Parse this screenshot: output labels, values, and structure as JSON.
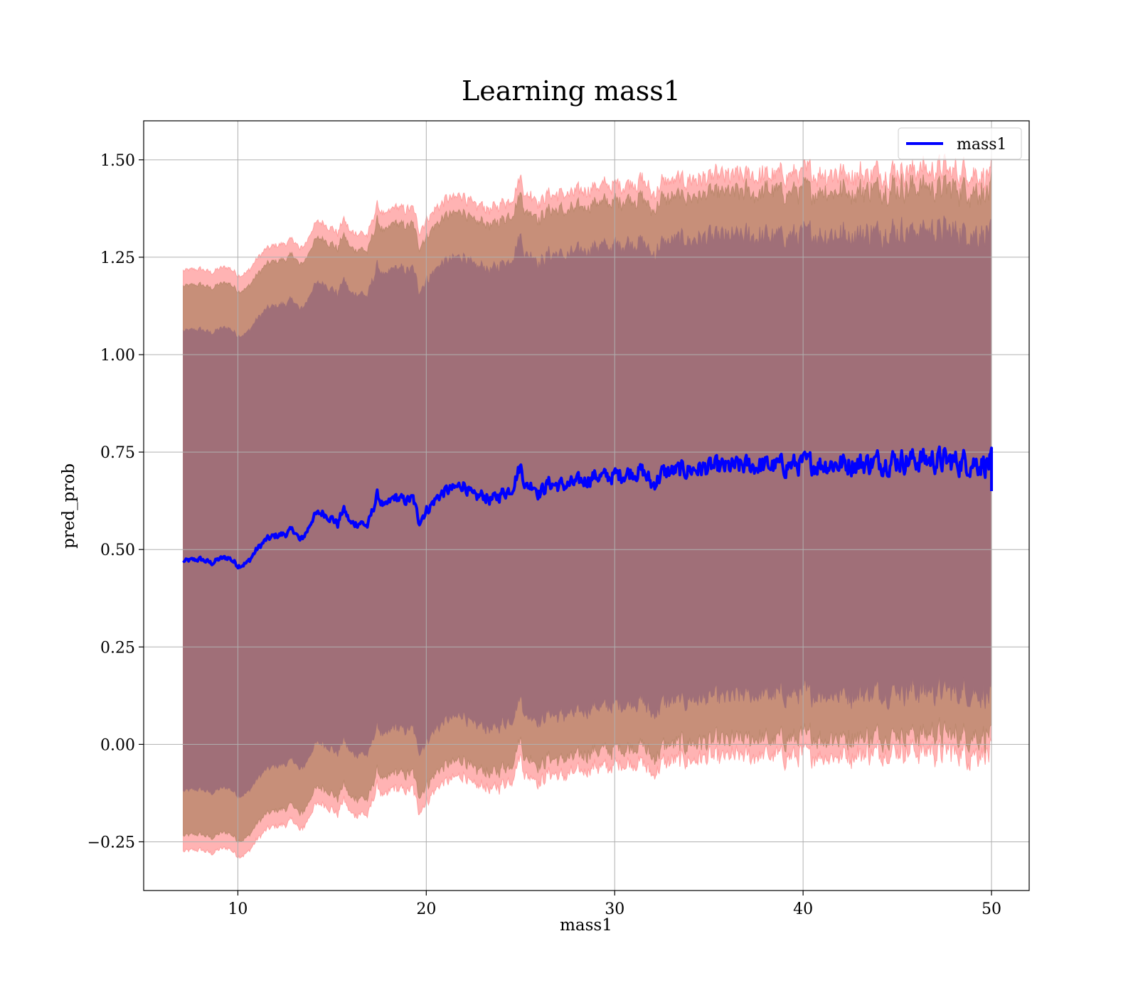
{
  "chart_data": {
    "type": "line",
    "title": "Learning mass1",
    "xlabel": "mass1",
    "ylabel": "pred_prob",
    "xlim": [
      5,
      52
    ],
    "ylim": [
      -0.375,
      1.6
    ],
    "xticks": [
      10,
      20,
      30,
      40,
      50
    ],
    "xtick_labels": [
      "10",
      "20",
      "30",
      "40",
      "50"
    ],
    "yticks": [
      -0.25,
      0.0,
      0.25,
      0.5,
      0.75,
      1.0,
      1.25,
      1.5
    ],
    "ytick_labels": [
      "−0.25",
      "0.00",
      "0.25",
      "0.50",
      "0.75",
      "1.00",
      "1.25",
      "1.50"
    ],
    "grid": true,
    "legend": {
      "position": "top-right",
      "entries": [
        "mass1"
      ]
    },
    "x_range": [
      7.1,
      50.0
    ],
    "series": [
      {
        "name": "mass1",
        "color": "#0000ff",
        "anchors": [
          [
            7.1,
            0.47
          ],
          [
            8,
            0.475
          ],
          [
            8.6,
            0.465
          ],
          [
            9,
            0.475
          ],
          [
            9.5,
            0.48
          ],
          [
            10,
            0.46
          ],
          [
            10.5,
            0.465
          ],
          [
            11,
            0.5
          ],
          [
            11.5,
            0.525
          ],
          [
            12,
            0.535
          ],
          [
            12.5,
            0.54
          ],
          [
            13,
            0.55
          ],
          [
            13.3,
            0.52
          ],
          [
            13.7,
            0.55
          ],
          [
            14,
            0.585
          ],
          [
            14.5,
            0.595
          ],
          [
            15,
            0.58
          ],
          [
            15.3,
            0.565
          ],
          [
            15.6,
            0.605
          ],
          [
            16,
            0.565
          ],
          [
            16.5,
            0.57
          ],
          [
            16.9,
            0.56
          ],
          [
            17.4,
            0.64
          ],
          [
            17.8,
            0.605
          ],
          [
            18.3,
            0.635
          ],
          [
            18.8,
            0.625
          ],
          [
            19.3,
            0.63
          ],
          [
            19.6,
            0.575
          ],
          [
            20,
            0.6
          ],
          [
            20.6,
            0.635
          ],
          [
            21,
            0.65
          ],
          [
            21.5,
            0.655
          ],
          [
            22,
            0.67
          ],
          [
            22.5,
            0.63
          ],
          [
            23,
            0.64
          ],
          [
            23.5,
            0.625
          ],
          [
            24,
            0.645
          ],
          [
            24.5,
            0.655
          ],
          [
            25,
            0.715
          ],
          [
            25.3,
            0.66
          ],
          [
            25.7,
            0.67
          ],
          [
            26,
            0.645
          ],
          [
            26.5,
            0.67
          ],
          [
            27,
            0.665
          ],
          [
            27.5,
            0.665
          ],
          [
            28,
            0.67
          ],
          [
            28.5,
            0.68
          ],
          [
            29,
            0.69
          ],
          [
            29.5,
            0.685
          ],
          [
            30,
            0.69
          ],
          [
            30.5,
            0.695
          ],
          [
            31,
            0.7
          ],
          [
            31.5,
            0.7
          ],
          [
            32,
            0.665
          ],
          [
            32.5,
            0.695
          ],
          [
            33,
            0.7
          ],
          [
            34,
            0.705
          ],
          [
            35,
            0.71
          ],
          [
            36,
            0.71
          ],
          [
            37,
            0.715
          ],
          [
            38,
            0.715
          ],
          [
            39,
            0.715
          ],
          [
            40,
            0.72
          ],
          [
            41,
            0.72
          ],
          [
            42,
            0.72
          ],
          [
            43,
            0.72
          ],
          [
            44,
            0.725
          ],
          [
            45,
            0.73
          ],
          [
            46,
            0.73
          ],
          [
            47,
            0.73
          ],
          [
            48,
            0.725
          ],
          [
            49,
            0.725
          ],
          [
            50,
            0.72
          ]
        ],
        "end_spike": [
          0.76,
          0.65
        ],
        "noise_amplitude_start": 0.005,
        "noise_amplitude_end": 0.03
      }
    ],
    "bands": [
      {
        "name": "band_outer",
        "color": "#ff9999",
        "fill_opacity": 0.75,
        "upper_offset_start": 0.745,
        "upper_offset_end": 0.745,
        "lower_offset_start": 0.745,
        "lower_offset_end": 0.745
      },
      {
        "name": "band_middle",
        "color": "#b9866a",
        "fill_opacity": 0.8,
        "upper_offset_start": 0.705,
        "upper_offset_end": 0.7,
        "lower_offset_start": 0.705,
        "lower_offset_end": 0.7
      },
      {
        "name": "band_inner",
        "color": "#a06f78",
        "fill_opacity": 1.0,
        "upper_offset_start": 0.59,
        "upper_offset_end": 0.59,
        "lower_offset_start": 0.59,
        "lower_offset_end": 0.59
      }
    ]
  }
}
